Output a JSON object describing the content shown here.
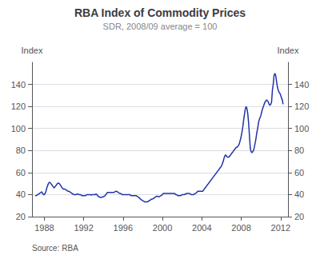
{
  "chart_data": {
    "type": "line",
    "title": "RBA Index of Commodity Prices",
    "subtitle": "SDR, 2008/09 average = 100",
    "ylabel": "Index",
    "y2label": "Index",
    "annotations": [
      "Source: RBA"
    ],
    "color": "#2233AA",
    "grid": true,
    "xlim": [
      1986.75,
      2012.75
    ],
    "xticks": [
      1988,
      1992,
      1996,
      2000,
      2004,
      2008,
      2012
    ],
    "ylim": [
      20,
      160
    ],
    "yticks": [
      20,
      40,
      60,
      80,
      100,
      120,
      140
    ],
    "y2lim": [
      20,
      160
    ],
    "y2ticks": [
      20,
      40,
      60,
      80,
      100,
      120,
      140
    ],
    "x": [
      1987.08,
      1987.17,
      1987.25,
      1987.33,
      1987.42,
      1987.5,
      1987.58,
      1987.67,
      1987.75,
      1987.83,
      1987.92,
      1988.0,
      1988.08,
      1988.17,
      1988.25,
      1988.33,
      1988.42,
      1988.5,
      1988.58,
      1988.67,
      1988.75,
      1988.83,
      1988.92,
      1989.0,
      1989.08,
      1989.17,
      1989.25,
      1989.33,
      1989.42,
      1989.5,
      1989.58,
      1989.67,
      1989.75,
      1989.83,
      1989.92,
      1990.0,
      1990.08,
      1990.17,
      1990.25,
      1990.33,
      1990.42,
      1990.5,
      1990.58,
      1990.67,
      1990.75,
      1990.83,
      1990.92,
      1991.0,
      1991.08,
      1991.17,
      1991.25,
      1991.33,
      1991.42,
      1991.5,
      1991.58,
      1991.67,
      1991.75,
      1991.83,
      1991.92,
      1992.0,
      1992.08,
      1992.17,
      1992.25,
      1992.33,
      1992.42,
      1992.5,
      1992.58,
      1992.67,
      1992.75,
      1992.83,
      1992.92,
      1993.0,
      1993.08,
      1993.17,
      1993.25,
      1993.33,
      1993.42,
      1993.5,
      1993.58,
      1993.67,
      1993.75,
      1993.83,
      1993.92,
      1994.0,
      1994.08,
      1994.17,
      1994.25,
      1994.33,
      1994.42,
      1994.5,
      1994.58,
      1994.67,
      1994.75,
      1994.83,
      1994.92,
      1995.0,
      1995.08,
      1995.17,
      1995.25,
      1995.33,
      1995.42,
      1995.5,
      1995.58,
      1995.67,
      1995.75,
      1995.83,
      1995.92,
      1996.0,
      1996.08,
      1996.17,
      1996.25,
      1996.33,
      1996.42,
      1996.5,
      1996.58,
      1996.67,
      1996.75,
      1996.83,
      1996.92,
      1997.0,
      1997.08,
      1997.17,
      1997.25,
      1997.33,
      1997.42,
      1997.5,
      1997.58,
      1997.67,
      1997.75,
      1997.83,
      1997.92,
      1998.0,
      1998.08,
      1998.17,
      1998.25,
      1998.33,
      1998.42,
      1998.5,
      1998.58,
      1998.67,
      1998.75,
      1998.83,
      1998.92,
      1999.0,
      1999.08,
      1999.17,
      1999.25,
      1999.33,
      1999.42,
      1999.5,
      1999.58,
      1999.67,
      1999.75,
      1999.83,
      1999.92,
      2000.0,
      2000.08,
      2000.17,
      2000.25,
      2000.33,
      2000.42,
      2000.5,
      2000.58,
      2000.67,
      2000.75,
      2000.83,
      2000.92,
      2001.0,
      2001.08,
      2001.17,
      2001.25,
      2001.33,
      2001.42,
      2001.5,
      2001.58,
      2001.67,
      2001.75,
      2001.83,
      2001.92,
      2002.0,
      2002.08,
      2002.17,
      2002.25,
      2002.33,
      2002.42,
      2002.5,
      2002.58,
      2002.67,
      2002.75,
      2002.83,
      2002.92,
      2003.0,
      2003.08,
      2003.17,
      2003.25,
      2003.33,
      2003.42,
      2003.5,
      2003.58,
      2003.67,
      2003.75,
      2003.83,
      2003.92,
      2004.0,
      2004.08,
      2004.17,
      2004.25,
      2004.33,
      2004.42,
      2004.5,
      2004.58,
      2004.67,
      2004.75,
      2004.83,
      2004.92,
      2005.0,
      2005.08,
      2005.17,
      2005.25,
      2005.33,
      2005.42,
      2005.5,
      2005.58,
      2005.67,
      2005.75,
      2005.83,
      2005.92,
      2006.0,
      2006.08,
      2006.17,
      2006.25,
      2006.33,
      2006.42,
      2006.5,
      2006.58,
      2006.67,
      2006.75,
      2006.83,
      2006.92,
      2007.0,
      2007.08,
      2007.17,
      2007.25,
      2007.33,
      2007.42,
      2007.5,
      2007.58,
      2007.67,
      2007.75,
      2007.83,
      2007.92,
      2008.0,
      2008.08,
      2008.17,
      2008.25,
      2008.33,
      2008.42,
      2008.5,
      2008.58,
      2008.67,
      2008.75,
      2008.83,
      2008.92,
      2009.0,
      2009.08,
      2009.17,
      2009.25,
      2009.33,
      2009.42,
      2009.5,
      2009.58,
      2009.67,
      2009.75,
      2009.83,
      2009.92,
      2010.0,
      2010.08,
      2010.17,
      2010.25,
      2010.33,
      2010.42,
      2010.5,
      2010.58,
      2010.67,
      2010.75,
      2010.83,
      2010.92,
      2011.0,
      2011.08,
      2011.17,
      2011.25,
      2011.33,
      2011.42,
      2011.5,
      2011.58,
      2011.67,
      2011.75,
      2011.83,
      2011.92,
      2012.0,
      2012.08,
      2012.17,
      2012.25
    ],
    "values": [
      39,
      39,
      39.5,
      40,
      40.5,
      41,
      41.5,
      42,
      42.5,
      41,
      40,
      40,
      41,
      43,
      46,
      48,
      50,
      51,
      51,
      50,
      49,
      48,
      47,
      46,
      47,
      48,
      49,
      50,
      50.5,
      50,
      49.5,
      48,
      47,
      46,
      45,
      45,
      45,
      44.5,
      44,
      43.5,
      43,
      43,
      42.5,
      42,
      41.5,
      41,
      40.5,
      40,
      40,
      40,
      40,
      40.5,
      40.5,
      40,
      40,
      40,
      39.5,
      39,
      39,
      39,
      39,
      39,
      39.5,
      40,
      40,
      40,
      40,
      40,
      39.5,
      40,
      40,
      40,
      40,
      40,
      40.5,
      40,
      39,
      38,
      38,
      37.5,
      37.5,
      37.5,
      38,
      38,
      38.5,
      39,
      40,
      41,
      42,
      42,
      42,
      42,
      42,
      42,
      42,
      42,
      42,
      42.5,
      43,
      43,
      42.5,
      42,
      41.5,
      41,
      41,
      40.5,
      40,
      40,
      40,
      40,
      40,
      40,
      40,
      40,
      40,
      40,
      39.5,
      39,
      39,
      39,
      39,
      39,
      39,
      39,
      38.5,
      38,
      37.5,
      37,
      36,
      35.5,
      35,
      34.5,
      34,
      33.5,
      33.5,
      33.5,
      33.5,
      33.5,
      34,
      34.5,
      35,
      35.5,
      36,
      36,
      36.5,
      37,
      37.5,
      38,
      38.5,
      38.5,
      38,
      38,
      38.5,
      39,
      39.5,
      40,
      41,
      41,
      41,
      41,
      41,
      41,
      41,
      41,
      41,
      41,
      41,
      41,
      41,
      41,
      41,
      40,
      40,
      39.5,
      39,
      39,
      39,
      39,
      39.5,
      40,
      40,
      40,
      40,
      40.5,
      41,
      41,
      41,
      41,
      41,
      40.5,
      40,
      40,
      40,
      40,
      40.5,
      41,
      41.5,
      42,
      43,
      43,
      43,
      43,
      43,
      43,
      43,
      44,
      45,
      46,
      47,
      48,
      49,
      50,
      51,
      52,
      53,
      54,
      55,
      56,
      57,
      58,
      59,
      60,
      61,
      62,
      63,
      64,
      65,
      66,
      68,
      70,
      73,
      75,
      76,
      75,
      74,
      74,
      74,
      75,
      76,
      77,
      78,
      79,
      80,
      81,
      82,
      83,
      83,
      84,
      85,
      87,
      90,
      93,
      97,
      102,
      108,
      113,
      118,
      120,
      118,
      113,
      105,
      94,
      82,
      79,
      78,
      79,
      80,
      83,
      87,
      91,
      96,
      100,
      105,
      108,
      110,
      112,
      115,
      118,
      120,
      122,
      124,
      125,
      126,
      125,
      124,
      122,
      121,
      122,
      124,
      135,
      140,
      148,
      150,
      148,
      143,
      138,
      135,
      133,
      132,
      130,
      128,
      126,
      122
    ]
  }
}
